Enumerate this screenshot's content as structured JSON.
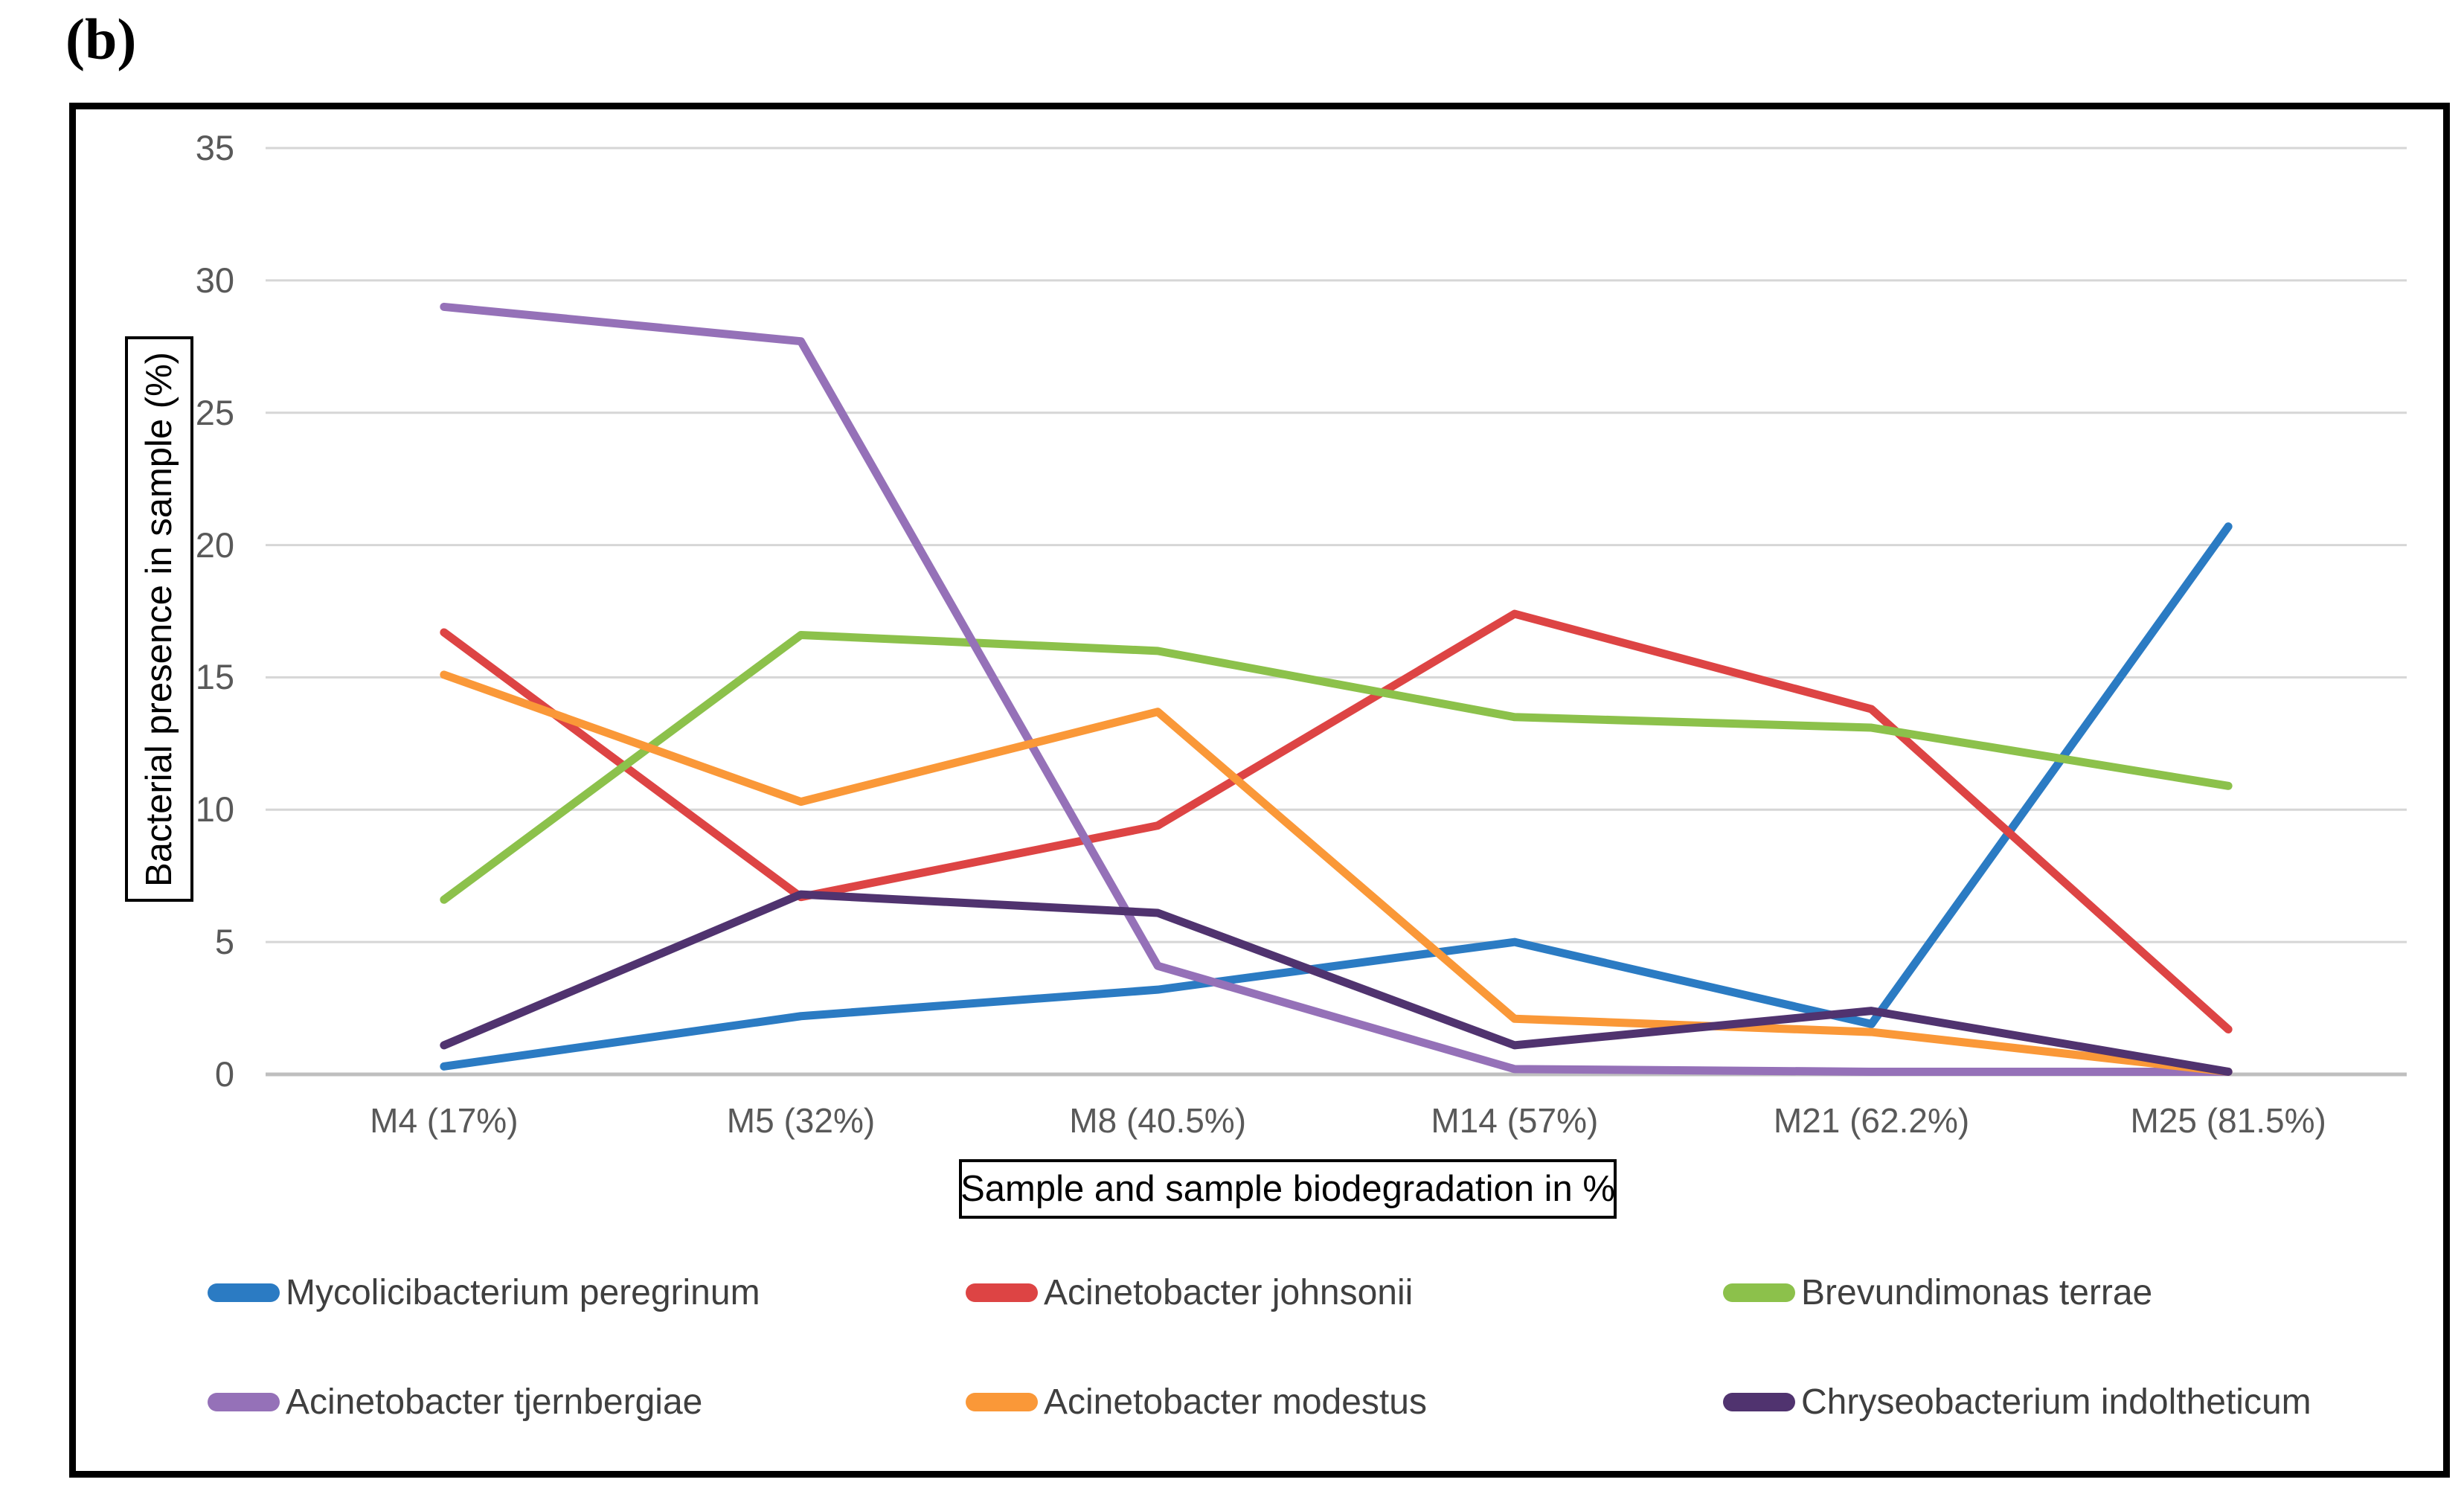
{
  "panel_label": "(b)",
  "chart_data": {
    "type": "line",
    "title": "",
    "xlabel": "Sample and sample biodegradation in %",
    "ylabel": "Bacterial presence in sample (%)",
    "categories": [
      "M4 (17%)",
      "M5 (32%)",
      "M8 (40.5%)",
      "M14 (57%)",
      "M21 (62.2%)",
      "M25 (81.5%)"
    ],
    "ylim": [
      0,
      35
    ],
    "yticks": [
      0,
      5,
      10,
      15,
      20,
      25,
      30,
      35
    ],
    "grid": true,
    "legend_position": "bottom",
    "series": [
      {
        "name": "Mycolicibacterium peregrinum",
        "color": "#2B7BC3",
        "values": [
          0.3,
          2.2,
          3.2,
          5.0,
          1.9,
          20.7
        ]
      },
      {
        "name": "Acinetobacter johnsonii",
        "color": "#DD4444",
        "values": [
          16.7,
          6.7,
          9.4,
          17.4,
          13.8,
          1.7
        ]
      },
      {
        "name": "Brevundimonas terrae",
        "color": "#8CC14B",
        "values": [
          6.6,
          16.6,
          16.0,
          13.5,
          13.1,
          10.9
        ]
      },
      {
        "name": "Acinetobacter tjernbergiae",
        "color": "#9571B8",
        "values": [
          29.0,
          27.7,
          4.1,
          0.2,
          0.1,
          0.1
        ]
      },
      {
        "name": "Acinetobacter modestus",
        "color": "#FA9838",
        "values": [
          15.1,
          10.3,
          13.7,
          2.1,
          1.6,
          0.1
        ]
      },
      {
        "name": "Chryseobacterium indoltheticum",
        "color": "#50336F",
        "values": [
          1.1,
          6.8,
          6.1,
          1.1,
          2.4,
          0.1
        ]
      }
    ]
  },
  "colors": {
    "gridline": "#D6D6D6",
    "axis_line": "#BFBFBF",
    "tick_text": "#595959",
    "legend_text": "#3F3F3F"
  }
}
